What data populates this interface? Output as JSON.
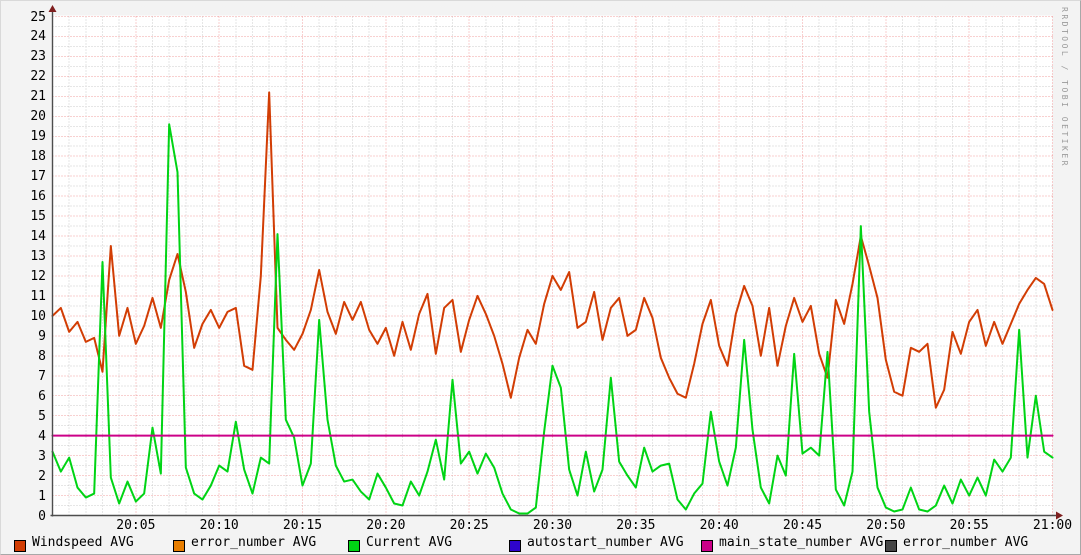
{
  "watermark": "RRDTOOL / TOBI OETIKER",
  "colors": {
    "background": "#f3f3f3",
    "canvas": "#ffffff",
    "grid_major": "#f2a0a0",
    "grid_minor": "#cccccc",
    "axis": "#4d4d4d",
    "arrow": "#7f1f1f",
    "tick_text": "#000000",
    "windspeed": "#d23d04",
    "error_number": "#e87e00",
    "current": "#00d414",
    "autostart_number": "#2e04cc",
    "main_state_number": "#cc0088",
    "error_number_2": "#454545"
  },
  "legend": {
    "items": [
      {
        "name": "windspeed",
        "label": "Windspeed AVG",
        "color": "#d23d04"
      },
      {
        "name": "error_number",
        "label": "error_number AVG",
        "color": "#e87e00"
      },
      {
        "name": "current",
        "label": "Current AVG",
        "color": "#00d414"
      },
      {
        "name": "autostart_number",
        "label": "autostart_number AVG",
        "color": "#2e04cc"
      },
      {
        "name": "main_state_number",
        "label": "main_state_number AVG",
        "color": "#cc0088"
      },
      {
        "name": "error_number_2",
        "label": "error_number AVG",
        "color": "#454545"
      }
    ]
  },
  "chart_data": {
    "type": "line",
    "title": "",
    "xlabel": "",
    "ylabel": "",
    "x_range_minutes": [
      0,
      60
    ],
    "x_start_time": "20:00",
    "x_end_time": "21:00",
    "ylim": [
      0,
      25
    ],
    "y_tick_step": 1,
    "y_ticks": [
      "0",
      "1",
      "2",
      "3",
      "4",
      "5",
      "6",
      "7",
      "8",
      "9",
      "10",
      "11",
      "12",
      "13",
      "14",
      "15",
      "16",
      "17",
      "18",
      "19",
      "20",
      "21",
      "22",
      "23",
      "24",
      "25"
    ],
    "x_ticks": [
      {
        "t": 5,
        "label": "20:05"
      },
      {
        "t": 10,
        "label": "20:10"
      },
      {
        "t": 15,
        "label": "20:15"
      },
      {
        "t": 20,
        "label": "20:20"
      },
      {
        "t": 25,
        "label": "20:25"
      },
      {
        "t": 30,
        "label": "20:30"
      },
      {
        "t": 35,
        "label": "20:35"
      },
      {
        "t": 40,
        "label": "20:40"
      },
      {
        "t": 45,
        "label": "20:45"
      },
      {
        "t": 50,
        "label": "20:50"
      },
      {
        "t": 55,
        "label": "20:55"
      },
      {
        "t": 60,
        "label": "21:00"
      }
    ],
    "grid": {
      "h_minor_step": 0.5,
      "h_major_step": 1,
      "v_minor_step_min": 1,
      "v_major_step_min": 5
    },
    "legend_position": "bottom",
    "series": [
      {
        "name": "Windspeed AVG",
        "color": "#d23d04",
        "step_minutes": 0.5,
        "values": [
          10.0,
          10.4,
          9.2,
          9.7,
          8.7,
          8.9,
          7.2,
          13.5,
          9.0,
          10.4,
          8.6,
          9.5,
          10.9,
          9.4,
          11.8,
          13.1,
          11.2,
          8.4,
          9.6,
          10.3,
          9.4,
          10.2,
          10.4,
          7.5,
          7.3,
          12.0,
          21.2,
          9.4,
          8.8,
          8.3,
          9.1,
          10.3,
          12.3,
          10.2,
          9.1,
          10.7,
          9.8,
          10.7,
          9.3,
          8.6,
          9.4,
          8.0,
          9.7,
          8.3,
          10.1,
          11.1,
          8.1,
          10.4,
          10.8,
          8.2,
          9.8,
          11.0,
          10.1,
          9.0,
          7.6,
          5.9,
          7.9,
          9.3,
          8.6,
          10.6,
          12.0,
          11.3,
          12.2,
          9.4,
          9.7,
          11.2,
          8.8,
          10.4,
          10.9,
          9.0,
          9.3,
          10.9,
          9.9,
          7.9,
          6.9,
          6.1,
          5.9,
          7.6,
          9.6,
          10.8,
          8.5,
          7.5,
          10.1,
          11.5,
          10.5,
          8.0,
          10.4,
          7.5,
          9.5,
          10.9,
          9.7,
          10.5,
          8.1,
          6.9,
          10.8,
          9.6,
          11.6,
          14.0,
          12.5,
          10.9,
          7.8,
          6.2,
          6.0,
          8.4,
          8.2,
          8.6,
          5.4,
          6.3,
          9.2,
          8.1,
          9.7,
          10.3,
          8.5,
          9.7,
          8.6,
          9.6,
          10.6,
          11.3,
          11.9,
          11.6,
          10.3
        ]
      },
      {
        "name": "error_number AVG",
        "color": "#e87e00",
        "step_minutes": 0.5,
        "values": null,
        "visible_on_graph": false
      },
      {
        "name": "Current AVG",
        "color": "#00d414",
        "step_minutes": 0.5,
        "values": [
          3.2,
          2.2,
          2.9,
          1.4,
          0.9,
          1.1,
          12.7,
          1.9,
          0.6,
          1.7,
          0.7,
          1.1,
          4.4,
          2.1,
          19.6,
          17.2,
          2.4,
          1.1,
          0.8,
          1.5,
          2.5,
          2.2,
          4.7,
          2.3,
          1.1,
          2.9,
          2.6,
          14.1,
          4.8,
          3.9,
          1.5,
          2.6,
          9.8,
          4.8,
          2.5,
          1.7,
          1.8,
          1.2,
          0.8,
          2.1,
          1.4,
          0.6,
          0.5,
          1.7,
          1.0,
          2.2,
          3.8,
          1.8,
          6.8,
          2.6,
          3.2,
          2.1,
          3.1,
          2.4,
          1.1,
          0.3,
          0.1,
          0.1,
          0.4,
          4.2,
          7.5,
          6.4,
          2.3,
          1.0,
          3.2,
          1.2,
          2.3,
          6.9,
          2.7,
          2.0,
          1.4,
          3.4,
          2.2,
          2.5,
          2.6,
          0.8,
          0.3,
          1.1,
          1.6,
          5.2,
          2.7,
          1.5,
          3.4,
          8.8,
          4.3,
          1.4,
          0.6,
          3.0,
          2.0,
          8.1,
          3.1,
          3.4,
          3.0,
          8.2,
          1.3,
          0.5,
          2.2,
          14.5,
          5.2,
          1.4,
          0.4,
          0.2,
          0.3,
          1.4,
          0.3,
          0.2,
          0.5,
          1.5,
          0.6,
          1.8,
          1.0,
          1.9,
          1.0,
          2.8,
          2.2,
          2.9,
          9.3,
          2.9,
          6.0,
          3.2,
          2.9
        ]
      },
      {
        "name": "autostart_number AVG",
        "color": "#2e04cc",
        "step_minutes": 0.5,
        "values": null,
        "visible_on_graph": false
      },
      {
        "name": "main_state_number AVG",
        "color": "#cc0088",
        "constant": 4
      },
      {
        "name": "error_number AVG",
        "color": "#454545",
        "step_minutes": 0.5,
        "values": null,
        "visible_on_graph": false
      }
    ]
  }
}
